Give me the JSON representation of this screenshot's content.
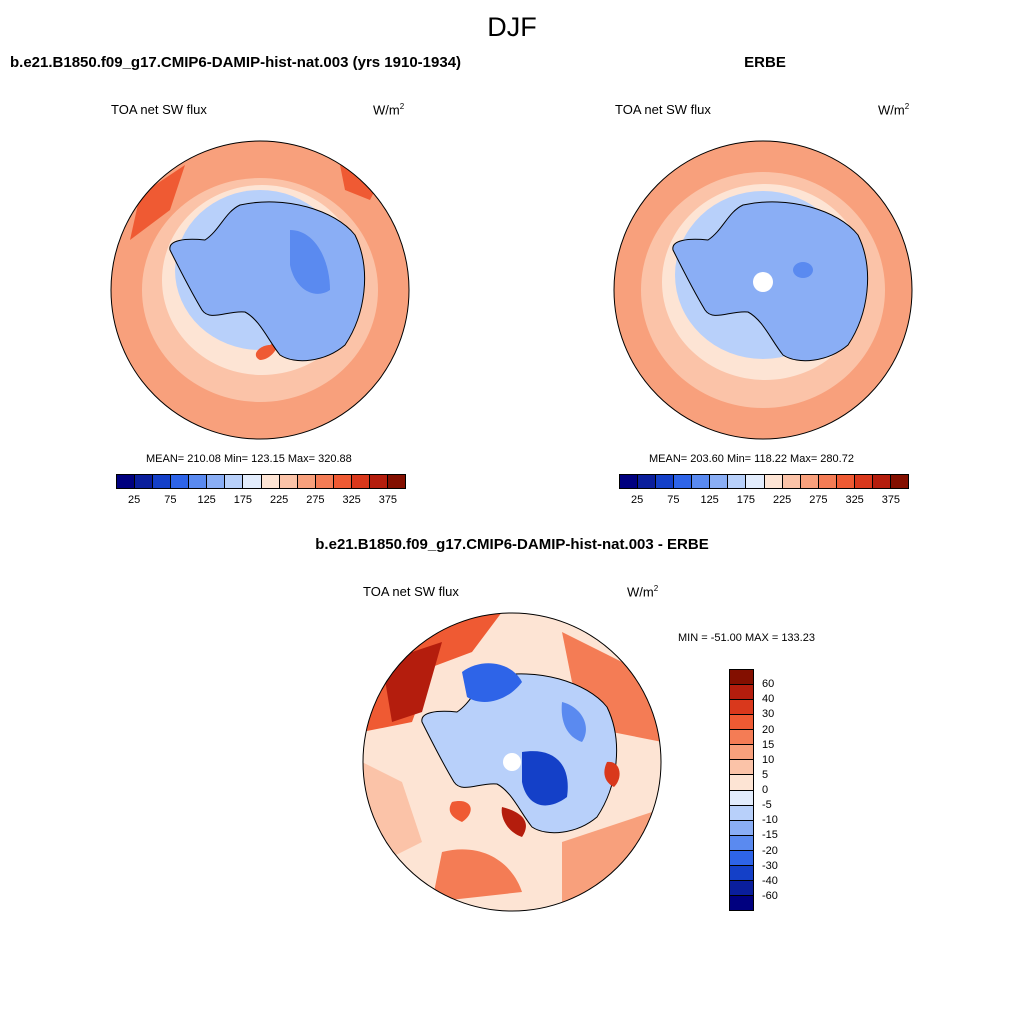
{
  "season": "DJF",
  "panels": {
    "left": {
      "title": "b.e21.B1850.f09_g17.CMIP6-DAMIP-hist-nat.003 (yrs 1910-1934)",
      "variable": "TOA net SW flux",
      "unit": "W/m",
      "unit_sup": "2",
      "stats": "MEAN= 210.08  Min= 123.15  Max= 320.88"
    },
    "right": {
      "title": "ERBE",
      "variable": "TOA net SW flux",
      "unit": "W/m",
      "unit_sup": "2",
      "stats": "MEAN= 203.60  Min= 118.22  Max= 280.72"
    },
    "diff": {
      "title": "b.e21.B1850.f09_g17.CMIP6-DAMIP-hist-nat.003 - ERBE",
      "variable": "TOA net SW flux",
      "unit": "W/m",
      "unit_sup": "2",
      "stats": "MIN = -51.00 MAX = 133.23"
    }
  },
  "colorbar_top": {
    "colors": [
      "#00007f",
      "#0a1e9c",
      "#1440c8",
      "#2e64e8",
      "#5a8af0",
      "#8aaef5",
      "#b8d0fa",
      "#e2ecfc",
      "#fde4d4",
      "#fbc3a8",
      "#f8a07c",
      "#f47c55",
      "#ef5a33",
      "#d9381c",
      "#b41d0d",
      "#830f00"
    ],
    "labels": [
      "25",
      "75",
      "125",
      "175",
      "225",
      "275",
      "325",
      "375"
    ]
  },
  "colorbar_diff": {
    "colors": [
      "#830f00",
      "#b41d0d",
      "#d9381c",
      "#ef5a33",
      "#f47c55",
      "#f8a07c",
      "#fbc3a8",
      "#fde4d4",
      "#e2ecfc",
      "#b8d0fa",
      "#8aaef5",
      "#5a8af0",
      "#2e64e8",
      "#1440c8",
      "#0a1e9c",
      "#00007f"
    ],
    "labels": [
      "60",
      "40",
      "30",
      "20",
      "15",
      "10",
      "5",
      "0",
      "-5",
      "-10",
      "-15",
      "-20",
      "-30",
      "-40",
      "-60"
    ]
  }
}
